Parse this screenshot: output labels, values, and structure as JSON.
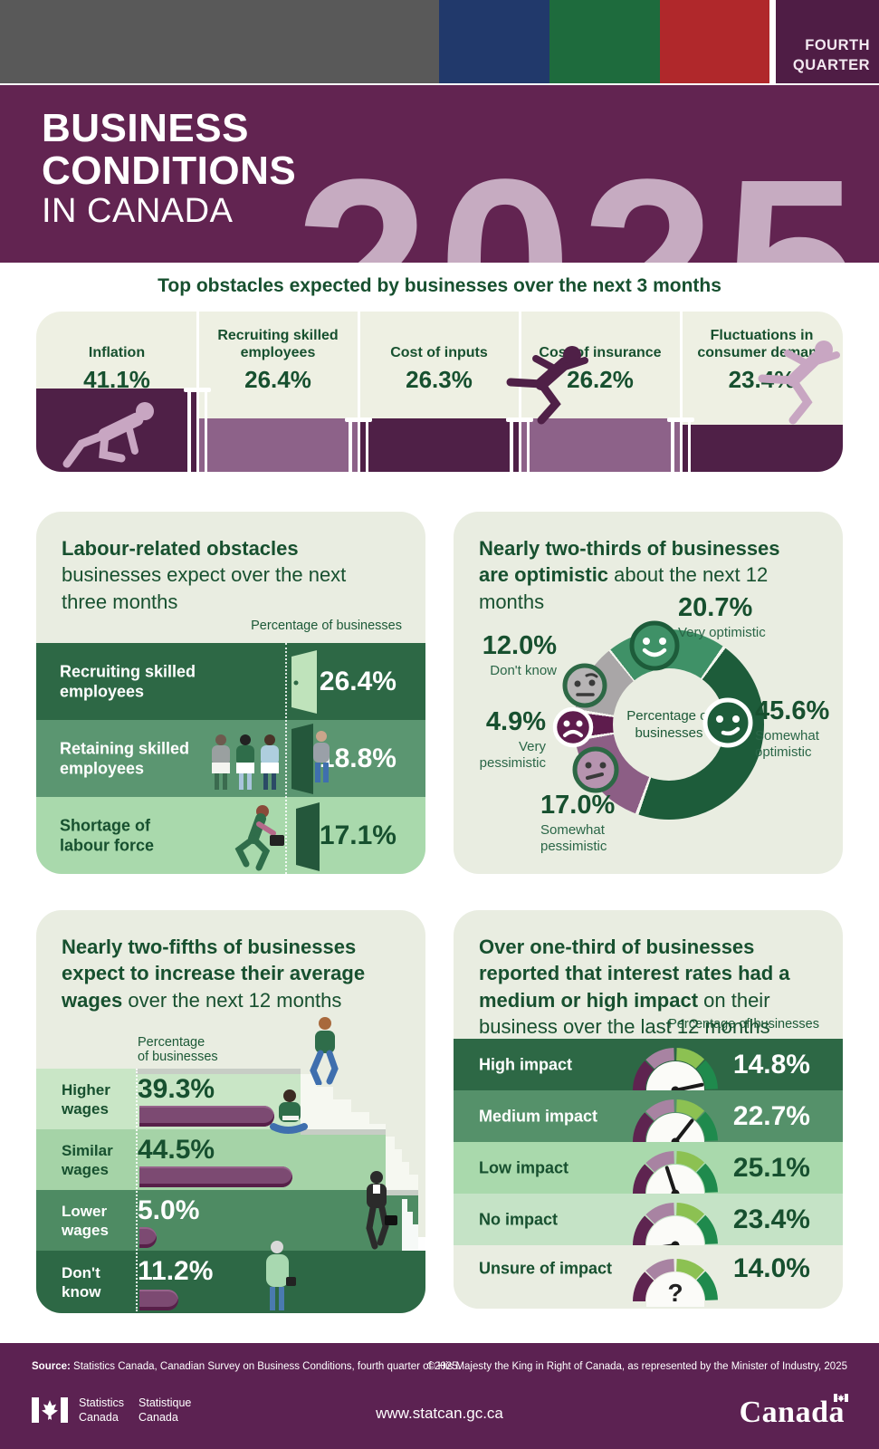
{
  "header": {
    "quarter_word1": "FOURTH",
    "quarter_word2": "QUARTER",
    "title_line1": "BUSINESS",
    "title_line2": "CONDITIONS",
    "title_line3": "IN CANADA",
    "year": "2025",
    "colors": {
      "banner": "#622451",
      "corner": "#4f1d45",
      "blue": "#21396b",
      "green": "#1e6b3d",
      "red": "#b0282b",
      "gray": "#595959"
    }
  },
  "obstacles": {
    "title": "Top obstacles expected by businesses over the next 3 months",
    "items": [
      {
        "label": "Inflation",
        "value": "41.1%",
        "pct": 41.1
      },
      {
        "label": "Recruiting skilled employees",
        "value": "26.4%",
        "pct": 26.4
      },
      {
        "label": "Cost of inputs",
        "value": "26.3%",
        "pct": 26.3
      },
      {
        "label": "Cost of insurance",
        "value": "26.2%",
        "pct": 26.2
      },
      {
        "label": "Fluctuations in consumer demand",
        "value": "23.4%",
        "pct": 23.4
      }
    ],
    "bar_colors": [
      "#4f2047",
      "#8d6289",
      "#4f2047",
      "#8d6289",
      "#4f2047"
    ]
  },
  "labour": {
    "title_bold": "Labour-related obstacles",
    "title_rest": " businesses expect over the next three months",
    "axis_label": "Percentage of businesses",
    "rows": [
      {
        "label": "Recruiting skilled employees",
        "value": "26.4%",
        "pct": 26.4
      },
      {
        "label": "Retaining skilled employees",
        "value": "18.8%",
        "pct": 18.8
      },
      {
        "label": "Shortage of labour force",
        "value": "17.1%",
        "pct": 17.1
      }
    ]
  },
  "optimism": {
    "title_bold": "Nearly two-thirds of businesses are optimistic",
    "title_rest": " about the next 12 months",
    "center_label": "Percentage of businesses",
    "segments": [
      {
        "label": "Very optimistic",
        "value": "20.7%",
        "pct": 20.7,
        "color": "#3f9167"
      },
      {
        "label": "Somewhat optimistic",
        "value": "45.6%",
        "pct": 45.6,
        "color": "#1d5c3a"
      },
      {
        "label": "Somewhat pessimistic",
        "value": "17.0%",
        "pct": 17.0,
        "color": "#8c5e85"
      },
      {
        "label": "Very pessimistic",
        "value": "4.9%",
        "pct": 4.9,
        "color": "#5e1c4d"
      },
      {
        "label": "Don't know",
        "value": "12.0%",
        "pct": 12.0,
        "color": "#a9a6a7"
      }
    ]
  },
  "wages": {
    "title_bold": "Nearly two-fifths of businesses expect to increase their average wages",
    "title_rest": " over the next 12 months",
    "axis_label_line1": "Percentage",
    "axis_label_line2": "of businesses",
    "rows": [
      {
        "label": "Higher wages",
        "value": "39.3%",
        "pct": 39.3
      },
      {
        "label": "Similar wages",
        "value": "44.5%",
        "pct": 44.5
      },
      {
        "label": "Lower wages",
        "value": "5.0%",
        "pct": 5.0
      },
      {
        "label": "Don't know",
        "value": "11.2%",
        "pct": 11.2
      }
    ]
  },
  "interest": {
    "title_bold": "Over one-third of businesses reported that interest rates had a medium or high impact",
    "title_rest": " on their business over the last 12 months",
    "axis_label": "Percentage of businesses",
    "rows": [
      {
        "label": "High impact",
        "value": "14.8%",
        "pct": 14.8,
        "needle_deg": -12
      },
      {
        "label": "Medium impact",
        "value": "22.7%",
        "pct": 22.7,
        "needle_deg": -52
      },
      {
        "label": "Low impact",
        "value": "25.1%",
        "pct": 25.1,
        "needle_deg": -108
      },
      {
        "label": "No impact",
        "value": "23.4%",
        "pct": 23.4,
        "needle_deg": -188
      },
      {
        "label": "Unsure of impact",
        "value": "14.0%",
        "pct": 14.0,
        "needle_deg": null,
        "glyph": "?"
      }
    ]
  },
  "footer": {
    "source_bold": "Source:",
    "source_rest": " Statistics Canada, Canadian Survey on Business Conditions, fourth quarter of 2025.",
    "copyright": "© His Majesty the King in Right of Canada, as represented by the Minister of Industry, 2025",
    "agency_en_line1": "Statistics",
    "agency_en_line2": "Canada",
    "agency_fr_line1": "Statistique",
    "agency_fr_line2": "Canada",
    "url": "www.statcan.gc.ca",
    "wordmark": "Canada"
  },
  "chart_data": [
    {
      "type": "bar",
      "title": "Top obstacles expected by businesses over the next 3 months",
      "categories": [
        "Inflation",
        "Recruiting skilled employees",
        "Cost of inputs",
        "Cost of insurance",
        "Fluctuations in consumer demand"
      ],
      "values": [
        41.1,
        26.4,
        26.3,
        26.2,
        23.4
      ],
      "ylabel": "Percentage of businesses",
      "ylim": [
        0,
        45
      ],
      "grid": false
    },
    {
      "type": "bar",
      "title": "Labour-related obstacles businesses expect over the next three months",
      "categories": [
        "Recruiting skilled employees",
        "Retaining skilled employees",
        "Shortage of labour force"
      ],
      "values": [
        26.4,
        18.8,
        17.1
      ],
      "ylabel": "Percentage of businesses",
      "grid": false
    },
    {
      "type": "pie",
      "title": "Nearly two-thirds of businesses are optimistic about the next 12 months",
      "categories": [
        "Very optimistic",
        "Somewhat optimistic",
        "Somewhat pessimistic",
        "Very pessimistic",
        "Don't know"
      ],
      "values": [
        20.7,
        45.6,
        17.0,
        4.9,
        12.0
      ],
      "center_label": "Percentage of businesses",
      "colors": [
        "#3f9167",
        "#1d5c3a",
        "#8c5e85",
        "#5e1c4d",
        "#a9a6a7"
      ]
    },
    {
      "type": "bar",
      "title": "Nearly two-fifths of businesses expect to increase their average wages over the next 12 months",
      "categories": [
        "Higher wages",
        "Similar wages",
        "Lower wages",
        "Don't know"
      ],
      "values": [
        39.3,
        44.5,
        5.0,
        11.2
      ],
      "ylabel": "Percentage of businesses",
      "grid": false
    },
    {
      "type": "bar",
      "title": "Impact of interest rates on businesses over the last 12 months",
      "categories": [
        "High impact",
        "Medium impact",
        "Low impact",
        "No impact",
        "Unsure of impact"
      ],
      "values": [
        14.8,
        22.7,
        25.1,
        23.4,
        14.0
      ],
      "ylabel": "Percentage of businesses",
      "grid": false
    }
  ]
}
